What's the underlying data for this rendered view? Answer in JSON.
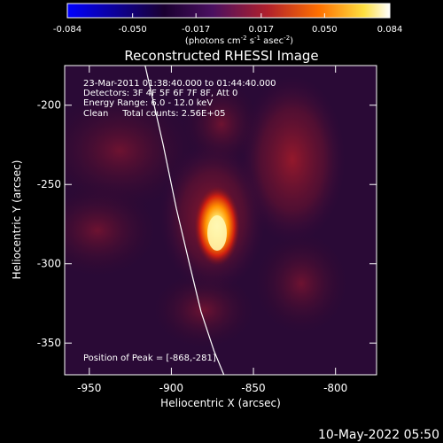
{
  "title": "Reconstructed RHESSI Image",
  "footer_timestamp": "10-May-2022 05:50",
  "colorbar": {
    "ticks": [
      "-0.084",
      "-0.050",
      "-0.017",
      "0.017",
      "0.050",
      "0.084"
    ],
    "tick_values": [
      -0.084,
      -0.05,
      -0.017,
      0.017,
      0.05,
      0.084
    ],
    "range": [
      -0.084,
      0.084
    ],
    "unit_label": "(photons cm",
    "unit_label_sup1": "-2",
    "unit_label_mid": " s",
    "unit_label_sup2": "-1",
    "unit_label_mid2": " asec",
    "unit_label_sup3": "-2",
    "unit_label_end": ")",
    "colors": [
      "#0000ff",
      "#000000",
      "#5a1470",
      "#c21a2a",
      "#ff7a00",
      "#ffff70",
      "#ffffff"
    ]
  },
  "annotations": {
    "time": "23-Mar-2011 01:38:40.000 to 01:44:40.000",
    "detectors": "Detectors: 3F 4F 5F 6F 7F 8F, Att 0",
    "energy": "Energy Range: 6.0 - 12.0 keV",
    "clean": "Clean     Total counts: 2.56E+05",
    "peak": "Position of Peak = [-868,-281]"
  },
  "chart_data": {
    "type": "heatmap",
    "title": "Reconstructed RHESSI Image",
    "xlabel": "Heliocentric X (arcsec)",
    "ylabel": "Heliocentric Y (arcsec)",
    "xlim": [
      -965,
      -775
    ],
    "ylim": [
      -370,
      -175
    ],
    "xticks": [
      -950,
      -900,
      -850,
      -800
    ],
    "xtick_labels": [
      "-950",
      "-900",
      "-850",
      "-800"
    ],
    "yticks": [
      -200,
      -250,
      -300,
      -350
    ],
    "ytick_labels": [
      "-200",
      "-250",
      "-300",
      "-350"
    ],
    "peak": {
      "x": -868,
      "y": -281
    },
    "limb_curve": [
      [
        -916,
        -175
      ],
      [
        -905,
        -225
      ],
      [
        -897,
        -265
      ],
      [
        -889,
        -300
      ],
      [
        -882,
        -330
      ],
      [
        -874,
        -355
      ],
      [
        -868,
        -370
      ]
    ]
  }
}
